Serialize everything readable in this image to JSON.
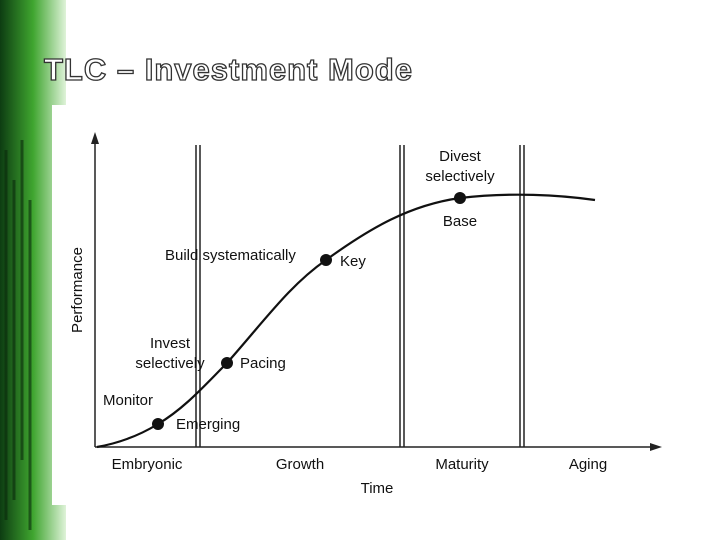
{
  "title": "TLC – Investment Mode",
  "axes": {
    "y_label": "Performance",
    "x_label": "Time"
  },
  "phases": [
    "Embryonic",
    "Growth",
    "Maturity",
    "Aging"
  ],
  "points": [
    {
      "technology": "Emerging",
      "strategy": [
        "Monitor"
      ]
    },
    {
      "technology": "Pacing",
      "strategy": [
        "Invest",
        "selectively"
      ]
    },
    {
      "technology": "Key",
      "strategy": [
        "Build systematically"
      ]
    },
    {
      "technology": "Base",
      "strategy": [
        "Divest",
        "selectively"
      ]
    }
  ]
}
